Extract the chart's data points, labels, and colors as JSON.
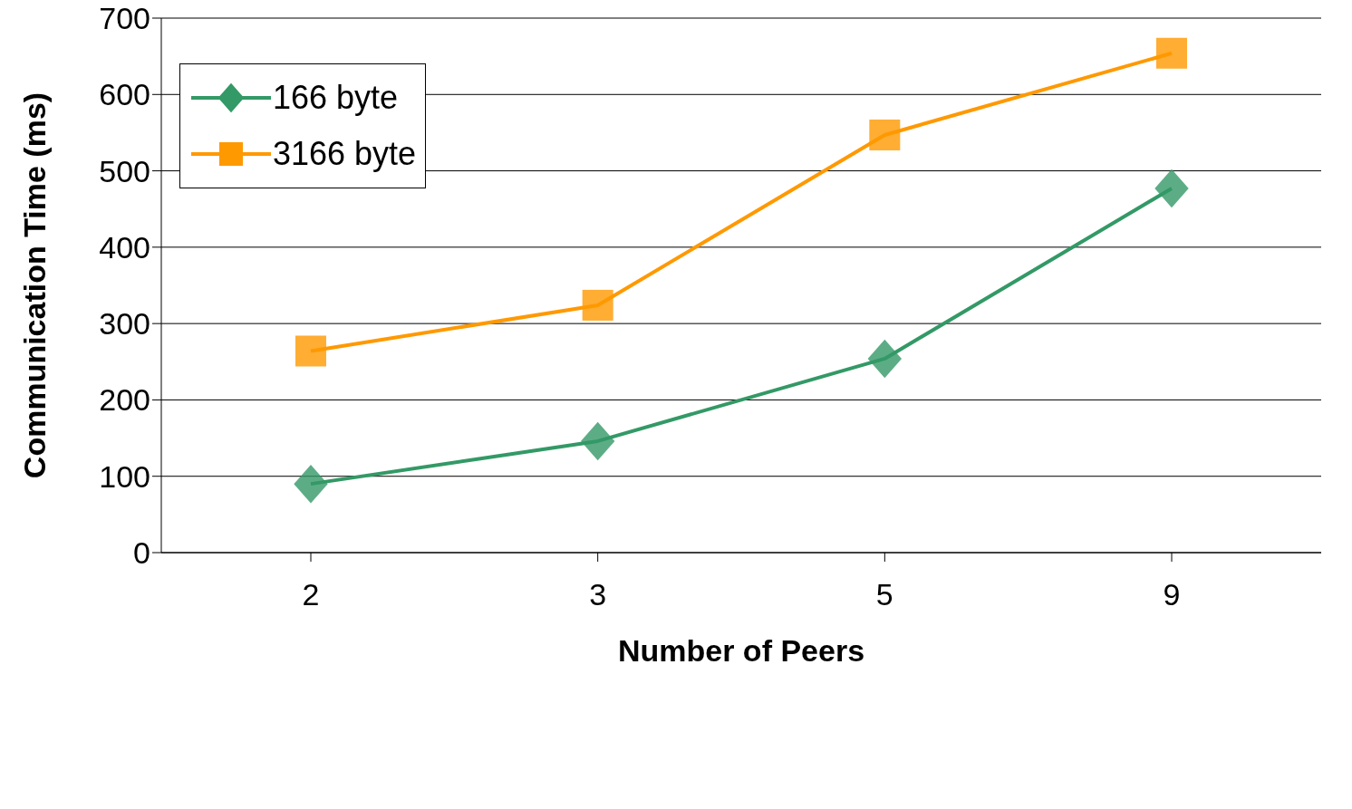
{
  "chart_data": {
    "type": "line",
    "xlabel": "Number of Peers",
    "ylabel": "Communication Time (ms)",
    "categories": [
      "2",
      "3",
      "5",
      "9"
    ],
    "series": [
      {
        "name": "166 byte",
        "color": "#339966",
        "marker": "diamond",
        "values": [
          90,
          146,
          254,
          477
        ]
      },
      {
        "name": "3166 byte",
        "color": "#ff9900",
        "marker": "square",
        "values": [
          264,
          324,
          547,
          654
        ]
      }
    ],
    "ylim": [
      0,
      700
    ],
    "yticks": [
      0,
      100,
      200,
      300,
      400,
      500,
      600,
      700
    ],
    "grid": "y",
    "legend": "top left",
    "line_style": "solid"
  }
}
